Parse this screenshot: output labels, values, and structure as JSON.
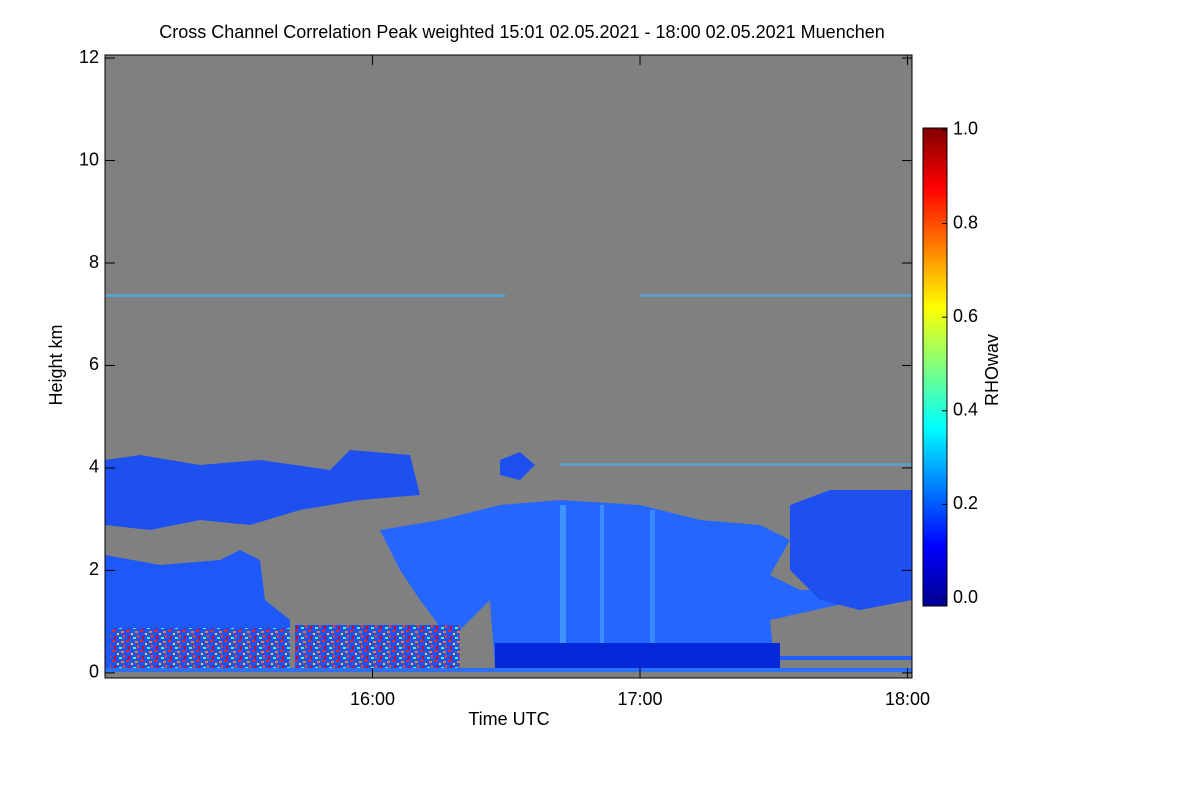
{
  "chart_data": {
    "type": "heatmap",
    "title": "Cross Channel Correlation Peak weighted   15:01 02.05.2021 - 18:00 02.05.2021 Muenchen",
    "x_label": "Time UTC",
    "y_label": "Height km",
    "colorbar_label": "RHOwav",
    "colormap": "jet",
    "missing_color": "#808080",
    "xlim": [
      0,
      181
    ],
    "xticks": [
      {
        "value": 60,
        "label": "16:00"
      },
      {
        "value": 120,
        "label": "17:00"
      },
      {
        "value": 180,
        "label": "18:00"
      }
    ],
    "ylim": [
      -0.1,
      12.06
    ],
    "yticks": [
      0,
      2,
      4,
      6,
      8,
      10,
      12
    ],
    "clim": [
      -0.017,
      1.004
    ],
    "cticks": [
      {
        "value": 0,
        "label": "0.0"
      },
      {
        "value": 0.2,
        "label": "0.2"
      },
      {
        "value": 0.4,
        "label": "0.4"
      },
      {
        "value": 0.6,
        "label": "0.6"
      },
      {
        "value": 0.8,
        "label": "0.8"
      },
      {
        "value": 1,
        "label": "1.0"
      }
    ]
  }
}
